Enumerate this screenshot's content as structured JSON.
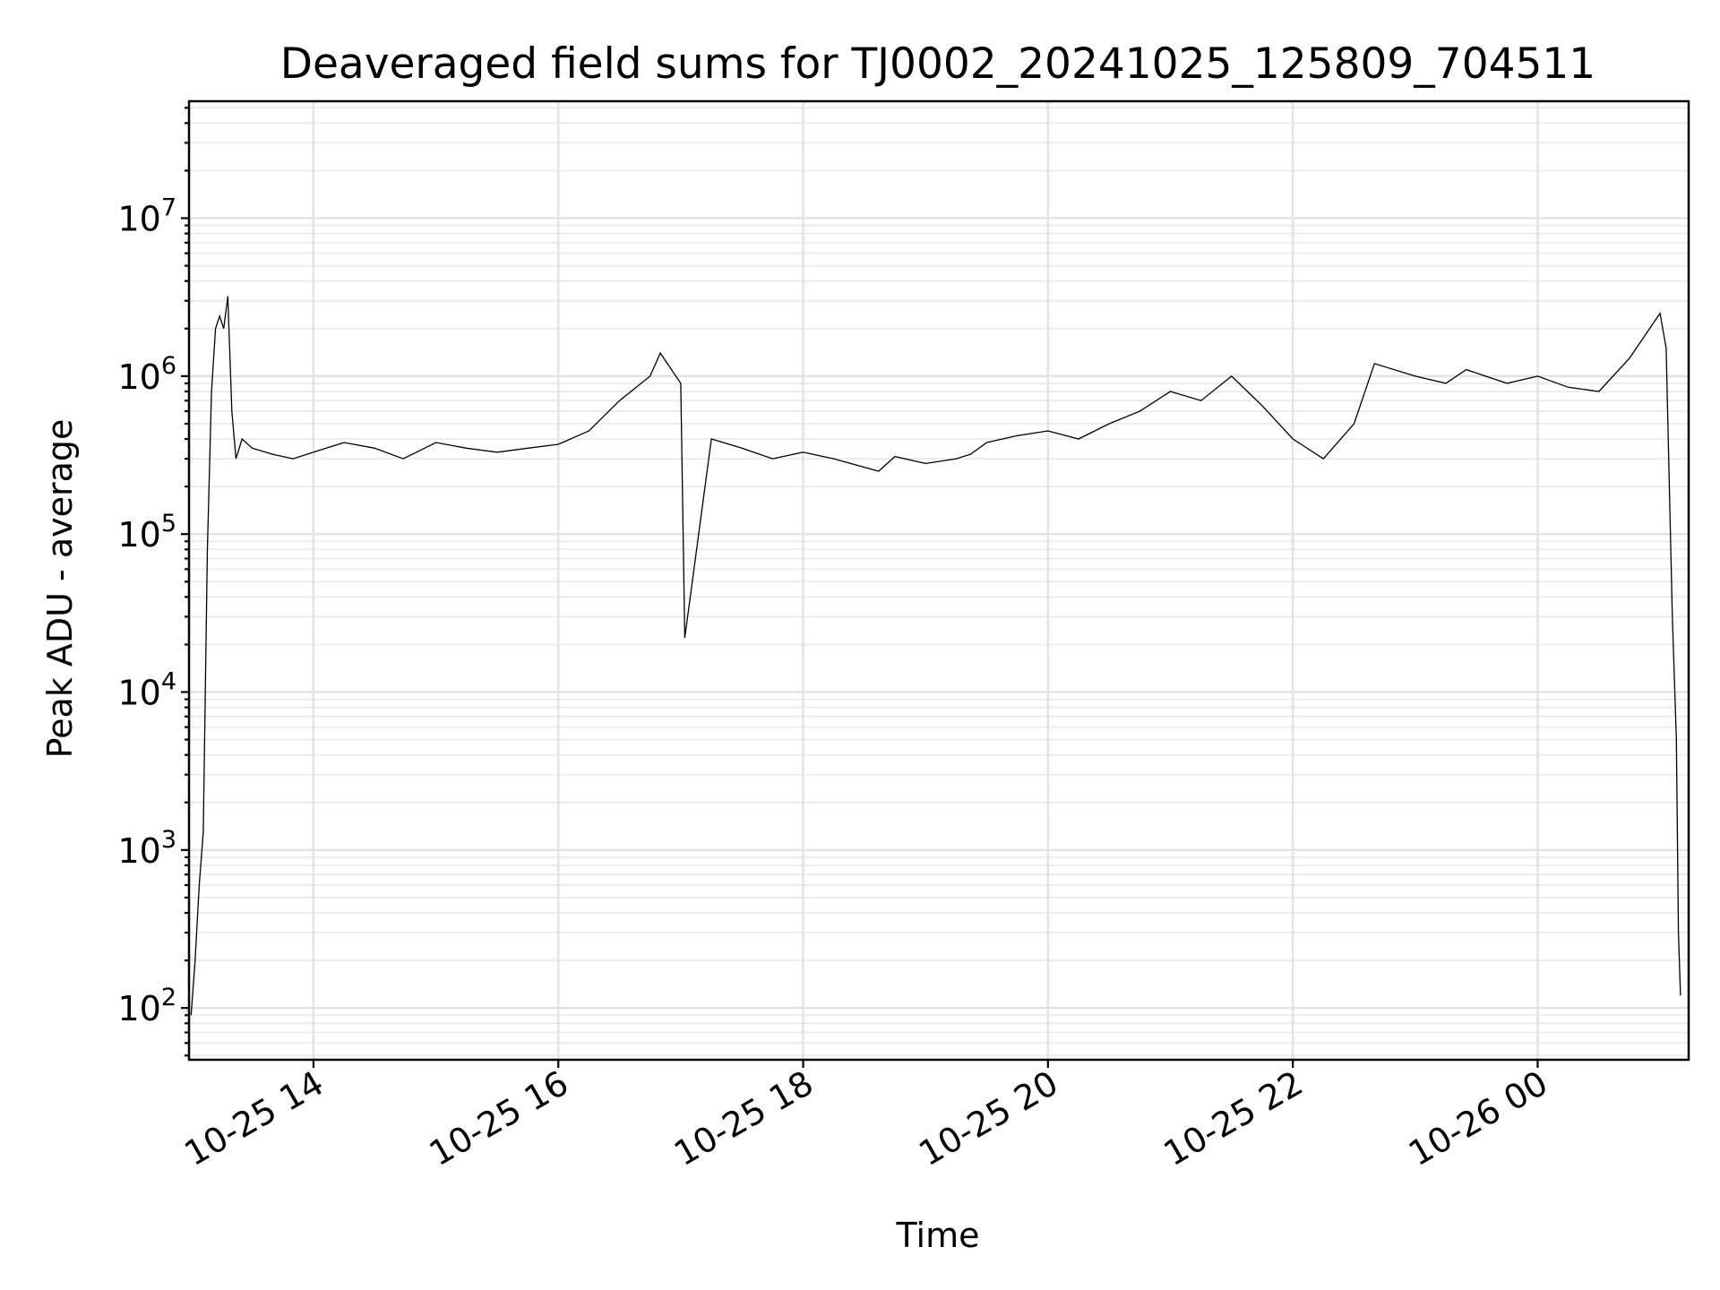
{
  "chart_data": {
    "type": "line",
    "title": "Deaveraged field sums for TJ0002_20241025_125809_704511",
    "xlabel": "Time",
    "ylabel": "Peak ADU - average",
    "yscale": "log",
    "ylim": [
      47,
      55000000
    ],
    "xlim": [
      "2024-10-25 12:59",
      "2024-10-26 01:14"
    ],
    "grid": true,
    "x_ticks": [
      {
        "value": "2024-10-25 14:00",
        "label": "10-25 14"
      },
      {
        "value": "2024-10-25 16:00",
        "label": "10-25 16"
      },
      {
        "value": "2024-10-25 18:00",
        "label": "10-25 18"
      },
      {
        "value": "2024-10-25 20:00",
        "label": "10-25 20"
      },
      {
        "value": "2024-10-25 22:00",
        "label": "10-25 22"
      },
      {
        "value": "2024-10-26 00:00",
        "label": "10-26 00"
      }
    ],
    "y_ticks": [
      {
        "value": 100,
        "base": "10",
        "exp": "2"
      },
      {
        "value": 1000,
        "base": "10",
        "exp": "3"
      },
      {
        "value": 10000,
        "base": "10",
        "exp": "4"
      },
      {
        "value": 100000,
        "base": "10",
        "exp": "5"
      },
      {
        "value": 1000000,
        "base": "10",
        "exp": "6"
      },
      {
        "value": 10000000,
        "base": "10",
        "exp": "7"
      }
    ],
    "series": [
      {
        "color": "#000000",
        "x": [
          "2024-10-25 13:00",
          "2024-10-25 13:02",
          "2024-10-25 13:04",
          "2024-10-25 13:06",
          "2024-10-25 13:08",
          "2024-10-25 13:10",
          "2024-10-25 13:12",
          "2024-10-25 13:14",
          "2024-10-25 13:16",
          "2024-10-25 13:18",
          "2024-10-25 13:20",
          "2024-10-25 13:22",
          "2024-10-25 13:25",
          "2024-10-25 13:30",
          "2024-10-25 13:40",
          "2024-10-25 13:50",
          "2024-10-25 14:00",
          "2024-10-25 14:15",
          "2024-10-25 14:30",
          "2024-10-25 14:44",
          "2024-10-25 15:00",
          "2024-10-25 15:15",
          "2024-10-25 15:30",
          "2024-10-25 15:45",
          "2024-10-25 16:00",
          "2024-10-25 16:15",
          "2024-10-25 16:30",
          "2024-10-25 16:45",
          "2024-10-25 16:50",
          "2024-10-25 17:00",
          "2024-10-25 17:02",
          "2024-10-25 17:15",
          "2024-10-25 17:30",
          "2024-10-25 17:45",
          "2024-10-25 18:00",
          "2024-10-25 18:15",
          "2024-10-25 18:37",
          "2024-10-25 18:45",
          "2024-10-25 19:00",
          "2024-10-25 19:15",
          "2024-10-25 19:22",
          "2024-10-25 19:30",
          "2024-10-25 19:45",
          "2024-10-25 20:00",
          "2024-10-25 20:15",
          "2024-10-25 20:30",
          "2024-10-25 20:45",
          "2024-10-25 21:00",
          "2024-10-25 21:15",
          "2024-10-25 21:30",
          "2024-10-25 21:45",
          "2024-10-25 22:00",
          "2024-10-25 22:15",
          "2024-10-25 22:30",
          "2024-10-25 22:40",
          "2024-10-25 23:00",
          "2024-10-25 23:15",
          "2024-10-25 23:25",
          "2024-10-25 23:45",
          "2024-10-26 00:00",
          "2024-10-26 00:15",
          "2024-10-26 00:30",
          "2024-10-26 00:45",
          "2024-10-26 01:00",
          "2024-10-26 01:03",
          "2024-10-26 01:06",
          "2024-10-26 01:08",
          "2024-10-26 01:09",
          "2024-10-26 01:10"
        ],
        "y": [
          90,
          200,
          600,
          1300,
          80000,
          800000,
          2000000,
          2400000,
          2000000,
          3200000,
          600000,
          300000,
          400000,
          350000,
          320000,
          300000,
          330000,
          380000,
          350000,
          300000,
          380000,
          350000,
          330000,
          350000,
          370000,
          450000,
          700000,
          1000000,
          1400000,
          900000,
          22000,
          400000,
          350000,
          300000,
          330000,
          300000,
          250000,
          310000,
          280000,
          300000,
          320000,
          380000,
          420000,
          450000,
          400000,
          500000,
          600000,
          800000,
          700000,
          1000000,
          650000,
          400000,
          300000,
          500000,
          1200000,
          1000000,
          900000,
          1100000,
          900000,
          1000000,
          850000,
          800000,
          1300000,
          2500000,
          1500000,
          30000,
          5000,
          300,
          120
        ]
      }
    ]
  }
}
